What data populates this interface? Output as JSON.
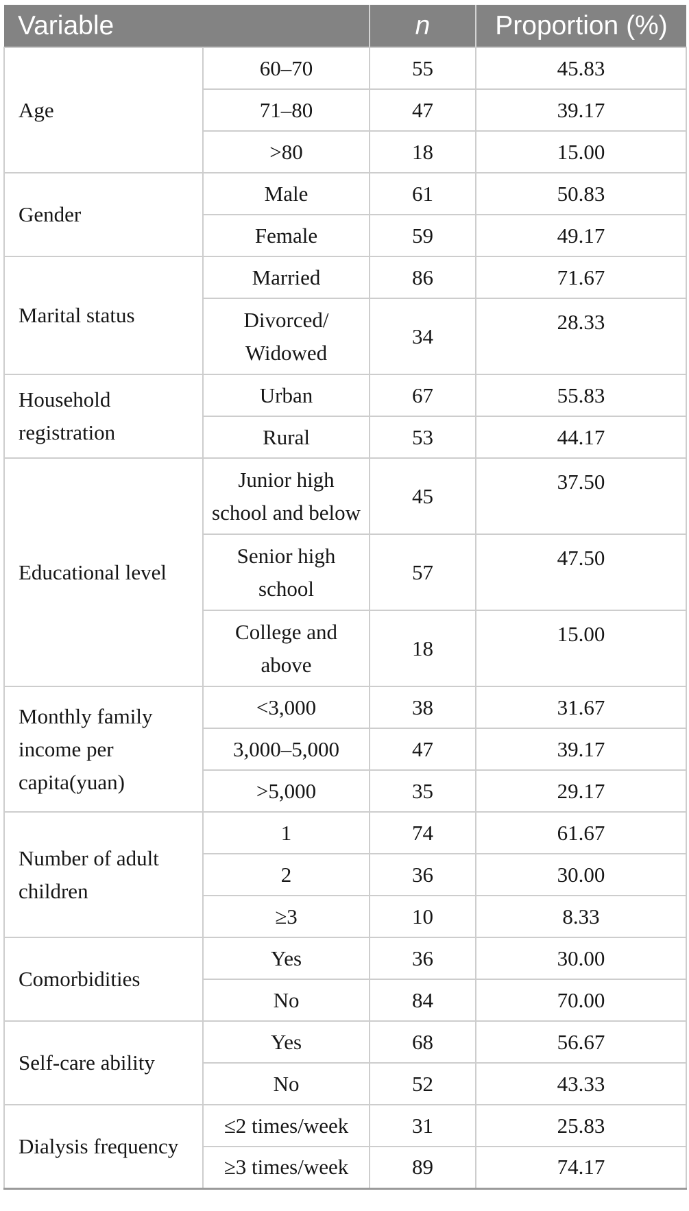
{
  "header": {
    "variable": "Variable",
    "n": "n",
    "proportion": "Proportion (%)"
  },
  "groups": [
    {
      "variable": "Age",
      "rows": [
        {
          "category": "60–70",
          "n": "55",
          "proportion": "45.83"
        },
        {
          "category": "71–80",
          "n": "47",
          "proportion": "39.17"
        },
        {
          "category": ">80",
          "n": "18",
          "proportion": "15.00"
        }
      ]
    },
    {
      "variable": "Gender",
      "rows": [
        {
          "category": "Male",
          "n": "61",
          "proportion": "50.83"
        },
        {
          "category": "Female",
          "n": "59",
          "proportion": "49.17"
        }
      ]
    },
    {
      "variable": "Marital status",
      "rows": [
        {
          "category": "Married",
          "n": "86",
          "proportion": "71.67"
        },
        {
          "category": "Divorced/\nWidowed",
          "n": "34",
          "proportion": "28.33"
        }
      ]
    },
    {
      "variable": "Household\nregistration",
      "rows": [
        {
          "category": "Urban",
          "n": "67",
          "proportion": "55.83"
        },
        {
          "category": "Rural",
          "n": "53",
          "proportion": "44.17"
        }
      ]
    },
    {
      "variable": "Educational level",
      "rows": [
        {
          "category": "Junior high\nschool and below",
          "n": "45",
          "proportion": "37.50"
        },
        {
          "category": "Senior high\nschool",
          "n": "57",
          "proportion": "47.50"
        },
        {
          "category": "College and\nabove",
          "n": "18",
          "proportion": "15.00"
        }
      ]
    },
    {
      "variable": "Monthly family\nincome per\ncapita(yuan)",
      "rows": [
        {
          "category": "<3,000",
          "n": "38",
          "proportion": "31.67"
        },
        {
          "category": "3,000–5,000",
          "n": "47",
          "proportion": "39.17"
        },
        {
          "category": ">5,000",
          "n": "35",
          "proportion": "29.17"
        }
      ]
    },
    {
      "variable": "Number of adult\nchildren",
      "rows": [
        {
          "category": "1",
          "n": "74",
          "proportion": "61.67"
        },
        {
          "category": "2",
          "n": "36",
          "proportion": "30.00"
        },
        {
          "category": "≥3",
          "n": "10",
          "proportion": "8.33"
        }
      ]
    },
    {
      "variable": "Comorbidities",
      "rows": [
        {
          "category": "Yes",
          "n": "36",
          "proportion": "30.00"
        },
        {
          "category": "No",
          "n": "84",
          "proportion": "70.00"
        }
      ]
    },
    {
      "variable": "Self-care ability",
      "rows": [
        {
          "category": "Yes",
          "n": "68",
          "proportion": "56.67"
        },
        {
          "category": "No",
          "n": "52",
          "proportion": "43.33"
        }
      ]
    },
    {
      "variable": "Dialysis frequency",
      "rows": [
        {
          "category": "≤2 times/week",
          "n": "31",
          "proportion": "25.83"
        },
        {
          "category": "≥3 times/week",
          "n": "89",
          "proportion": "74.17"
        }
      ]
    }
  ],
  "colors": {
    "header_bg": "#838383",
    "header_text": "#ffffff",
    "grid_line": "#cdcdcd",
    "header_separator": "#d4d4d4",
    "bottom_border": "#9a9a9a",
    "body_text": "#161616"
  }
}
